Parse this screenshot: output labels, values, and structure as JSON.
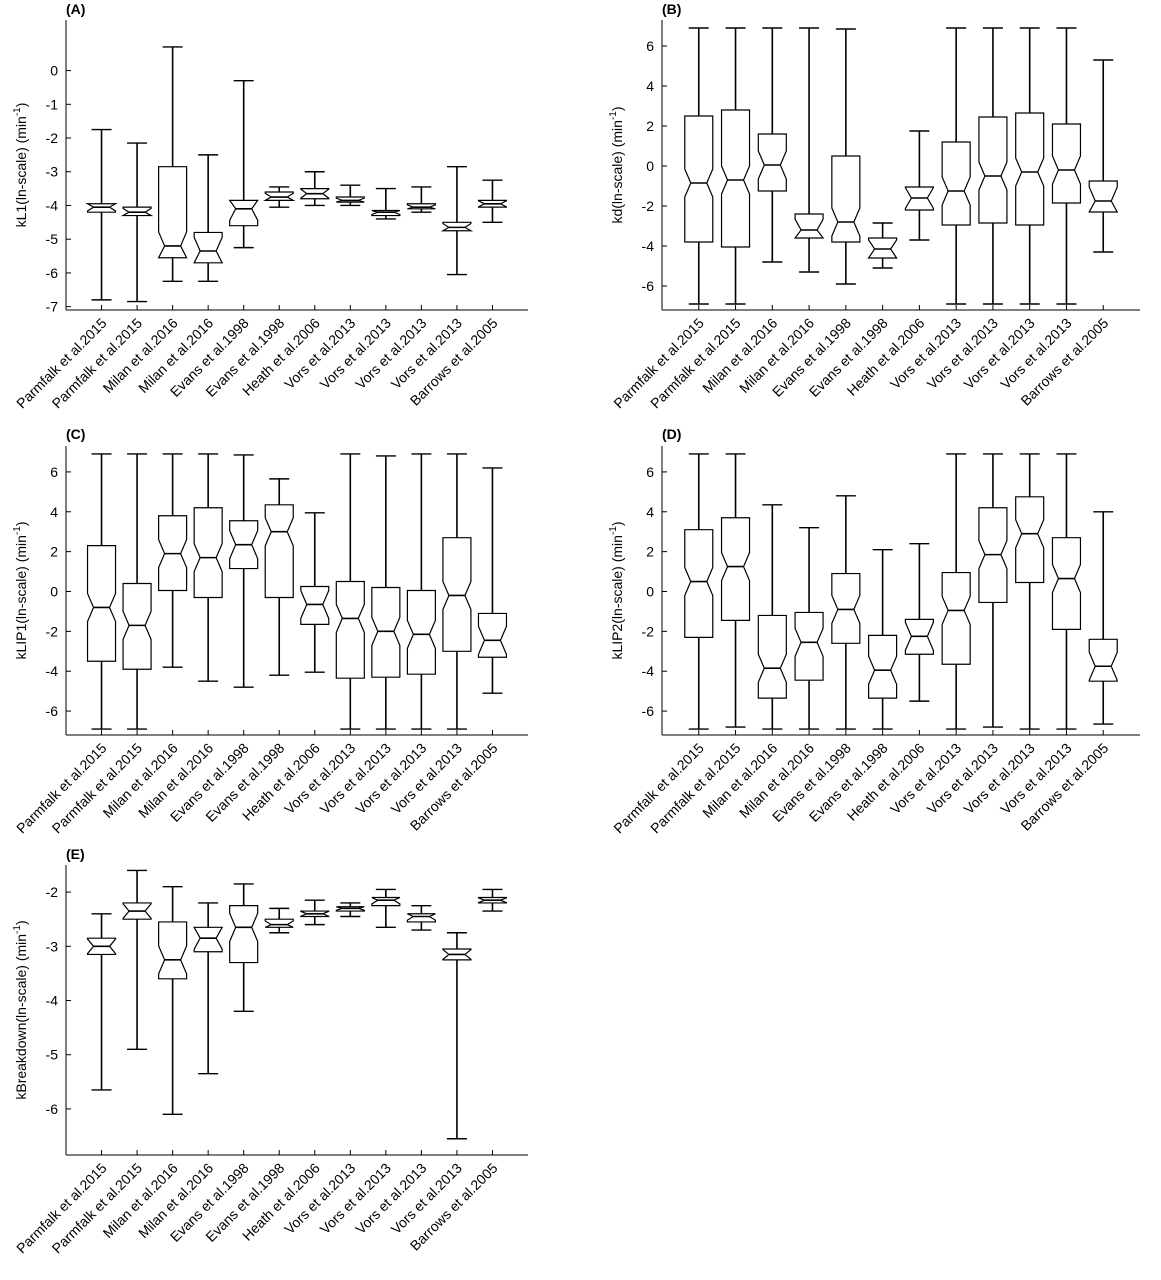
{
  "chart_data": [
    {
      "type": "boxplot",
      "panel_label": "(A)",
      "ylabel": "kL1(ln-scale) (min",
      "ylabel_sup": "-1",
      "ylabel_tail": ")",
      "ylim": [
        -7.1,
        1.5
      ],
      "yticks": [
        -7,
        -6,
        -5,
        -4,
        -3,
        -2,
        -1,
        0
      ],
      "notched": true,
      "categories": [
        "Parmfalk et al.2015",
        "Parmfalk et al.2015",
        "Milan et al.2016",
        "Milan et al.2016",
        "Evans et al.1998",
        "Evans et al.1998",
        "Heath et al.2006",
        "Vors et al.2013",
        "Vors et al.2013",
        "Vors et al.2013",
        "Vors et al.2013",
        "Barrows et al.2005"
      ],
      "boxes": [
        {
          "whisker_low": -6.8,
          "q1": -4.2,
          "median": -4.05,
          "q3": -3.95,
          "whisker_high": -1.75
        },
        {
          "whisker_low": -6.85,
          "q1": -4.3,
          "median": -4.2,
          "q3": -4.05,
          "whisker_high": -2.15
        },
        {
          "whisker_low": -6.25,
          "q1": -5.55,
          "median": -5.2,
          "q3": -2.85,
          "whisker_high": 0.7
        },
        {
          "whisker_low": -6.25,
          "q1": -5.7,
          "median": -5.35,
          "q3": -4.8,
          "whisker_high": -2.5
        },
        {
          "whisker_low": -5.25,
          "q1": -4.6,
          "median": -4.1,
          "q3": -3.85,
          "whisker_high": -0.3
        },
        {
          "whisker_low": -4.05,
          "q1": -3.85,
          "median": -3.75,
          "q3": -3.6,
          "whisker_high": -3.45
        },
        {
          "whisker_low": -4.0,
          "q1": -3.8,
          "median": -3.65,
          "q3": -3.5,
          "whisker_high": -3.0
        },
        {
          "whisker_low": -4.0,
          "q1": -3.9,
          "median": -3.85,
          "q3": -3.75,
          "whisker_high": -3.4
        },
        {
          "whisker_low": -4.4,
          "q1": -4.3,
          "median": -4.2,
          "q3": -4.15,
          "whisker_high": -3.5
        },
        {
          "whisker_low": -4.2,
          "q1": -4.1,
          "median": -4.05,
          "q3": -3.95,
          "whisker_high": -3.45
        },
        {
          "whisker_low": -6.05,
          "q1": -4.75,
          "median": -4.65,
          "q3": -4.5,
          "whisker_high": -2.85
        },
        {
          "whisker_low": -4.5,
          "q1": -4.05,
          "median": -3.95,
          "q3": -3.85,
          "whisker_high": -3.25
        }
      ]
    },
    {
      "type": "boxplot",
      "panel_label": "(B)",
      "ylabel": "kd(ln-scale) (min",
      "ylabel_sup": "-1",
      "ylabel_tail": ")",
      "ylim": [
        -7.2,
        7.3
      ],
      "yticks": [
        -6,
        -4,
        -2,
        0,
        2,
        4,
        6
      ],
      "notched": true,
      "categories": [
        "Parmfalk et al.2015",
        "Parmfalk et al.2015",
        "Milan et al.2016",
        "Milan et al.2016",
        "Evans et al.1998",
        "Evans et al.1998",
        "Heath et al.2006",
        "Vors et al.2013",
        "Vors et al.2013",
        "Vors et al.2013",
        "Vors et al.2013",
        "Barrows et al.2005"
      ],
      "boxes": [
        {
          "whisker_low": -6.9,
          "q1": -3.8,
          "median": -0.85,
          "q3": 2.5,
          "whisker_high": 6.9
        },
        {
          "whisker_low": -6.9,
          "q1": -4.05,
          "median": -0.7,
          "q3": 2.8,
          "whisker_high": 6.9
        },
        {
          "whisker_low": -4.8,
          "q1": -1.25,
          "median": 0.05,
          "q3": 1.6,
          "whisker_high": 6.9
        },
        {
          "whisker_low": -5.3,
          "q1": -3.6,
          "median": -3.2,
          "q3": -2.4,
          "whisker_high": 6.9
        },
        {
          "whisker_low": -5.9,
          "q1": -3.8,
          "median": -2.8,
          "q3": 0.5,
          "whisker_high": 6.85
        },
        {
          "whisker_low": -5.1,
          "q1": -4.6,
          "median": -4.15,
          "q3": -3.6,
          "whisker_high": -2.85
        },
        {
          "whisker_low": -3.7,
          "q1": -2.2,
          "median": -1.6,
          "q3": -1.05,
          "whisker_high": 1.75
        },
        {
          "whisker_low": -6.9,
          "q1": -2.95,
          "median": -1.25,
          "q3": 1.2,
          "whisker_high": 6.9
        },
        {
          "whisker_low": -6.9,
          "q1": -2.85,
          "median": -0.5,
          "q3": 2.45,
          "whisker_high": 6.9
        },
        {
          "whisker_low": -6.9,
          "q1": -2.95,
          "median": -0.3,
          "q3": 2.65,
          "whisker_high": 6.9
        },
        {
          "whisker_low": -6.9,
          "q1": -1.85,
          "median": -0.2,
          "q3": 2.1,
          "whisker_high": 6.9
        },
        {
          "whisker_low": -4.3,
          "q1": -2.3,
          "median": -1.75,
          "q3": -0.75,
          "whisker_high": 5.3
        }
      ]
    },
    {
      "type": "boxplot",
      "panel_label": "(C)",
      "ylabel": "kLIP1(ln-scale) (min",
      "ylabel_sup": "-1",
      "ylabel_tail": ")",
      "ylim": [
        -7.2,
        7.3
      ],
      "yticks": [
        -6,
        -4,
        -2,
        0,
        2,
        4,
        6
      ],
      "notched": true,
      "categories": [
        "Parmfalk et al.2015",
        "Parmfalk et al.2015",
        "Milan et al.2016",
        "Milan et al.2016",
        "Evans et al.1998",
        "Evans et al.1998",
        "Heath et al.2006",
        "Vors et al.2013",
        "Vors et al.2013",
        "Vors et al.2013",
        "Vors et al.2013",
        "Barrows et al.2005"
      ],
      "boxes": [
        {
          "whisker_low": -6.9,
          "q1": -3.5,
          "median": -0.8,
          "q3": 2.3,
          "whisker_high": 6.9
        },
        {
          "whisker_low": -6.9,
          "q1": -3.9,
          "median": -1.7,
          "q3": 0.4,
          "whisker_high": 6.9
        },
        {
          "whisker_low": -3.8,
          "q1": 0.05,
          "median": 1.9,
          "q3": 3.8,
          "whisker_high": 6.9
        },
        {
          "whisker_low": -4.5,
          "q1": -0.3,
          "median": 1.7,
          "q3": 4.2,
          "whisker_high": 6.9
        },
        {
          "whisker_low": -4.8,
          "q1": 1.15,
          "median": 2.35,
          "q3": 3.55,
          "whisker_high": 6.85
        },
        {
          "whisker_low": -4.2,
          "q1": -0.3,
          "median": 3.0,
          "q3": 4.35,
          "whisker_high": 5.65
        },
        {
          "whisker_low": -4.05,
          "q1": -1.65,
          "median": -0.65,
          "q3": 0.25,
          "whisker_high": 3.95
        },
        {
          "whisker_low": -6.9,
          "q1": -4.35,
          "median": -1.35,
          "q3": 0.5,
          "whisker_high": 6.9
        },
        {
          "whisker_low": -6.9,
          "q1": -4.3,
          "median": -2.0,
          "q3": 0.2,
          "whisker_high": 6.8
        },
        {
          "whisker_low": -6.9,
          "q1": -4.15,
          "median": -2.15,
          "q3": 0.05,
          "whisker_high": 6.9
        },
        {
          "whisker_low": -6.9,
          "q1": -3.0,
          "median": -0.2,
          "q3": 2.7,
          "whisker_high": 6.9
        },
        {
          "whisker_low": -5.1,
          "q1": -3.3,
          "median": -2.45,
          "q3": -1.1,
          "whisker_high": 6.2
        }
      ]
    },
    {
      "type": "boxplot",
      "panel_label": "(D)",
      "ylabel": "kLIP2(ln-scale) (min",
      "ylabel_sup": "-1",
      "ylabel_tail": ")",
      "ylim": [
        -7.2,
        7.3
      ],
      "yticks": [
        -6,
        -4,
        -2,
        0,
        2,
        4,
        6
      ],
      "notched": true,
      "categories": [
        "Parmfalk et al.2015",
        "Parmfalk et al.2015",
        "Milan et al.2016",
        "Milan et al.2016",
        "Evans et al.1998",
        "Evans et al.1998",
        "Heath et al.2006",
        "Vors et al.2013",
        "Vors et al.2013",
        "Vors et al.2013",
        "Vors et al.2013",
        "Barrows et al.2005"
      ],
      "boxes": [
        {
          "whisker_low": -6.9,
          "q1": -2.3,
          "median": 0.5,
          "q3": 3.1,
          "whisker_high": 6.9
        },
        {
          "whisker_low": -6.8,
          "q1": -1.45,
          "median": 1.25,
          "q3": 3.7,
          "whisker_high": 6.9
        },
        {
          "whisker_low": -6.9,
          "q1": -5.35,
          "median": -3.85,
          "q3": -1.2,
          "whisker_high": 4.35
        },
        {
          "whisker_low": -6.9,
          "q1": -4.45,
          "median": -2.55,
          "q3": -1.05,
          "whisker_high": 3.2
        },
        {
          "whisker_low": -6.9,
          "q1": -2.6,
          "median": -0.9,
          "q3": 0.9,
          "whisker_high": 4.8
        },
        {
          "whisker_low": -6.9,
          "q1": -5.35,
          "median": -3.95,
          "q3": -2.2,
          "whisker_high": 2.1
        },
        {
          "whisker_low": -5.5,
          "q1": -3.15,
          "median": -2.25,
          "q3": -1.4,
          "whisker_high": 2.4
        },
        {
          "whisker_low": -6.9,
          "q1": -3.65,
          "median": -0.95,
          "q3": 0.95,
          "whisker_high": 6.9
        },
        {
          "whisker_low": -6.8,
          "q1": -0.55,
          "median": 1.85,
          "q3": 4.2,
          "whisker_high": 6.9
        },
        {
          "whisker_low": -6.9,
          "q1": 0.45,
          "median": 2.9,
          "q3": 4.75,
          "whisker_high": 6.9
        },
        {
          "whisker_low": -6.9,
          "q1": -1.9,
          "median": 0.65,
          "q3": 2.7,
          "whisker_high": 6.9
        },
        {
          "whisker_low": -6.65,
          "q1": -4.5,
          "median": -3.75,
          "q3": -2.4,
          "whisker_high": 4.0
        }
      ]
    },
    {
      "type": "boxplot",
      "panel_label": "(E)",
      "ylabel": "kBreakdown(ln-scale) (min",
      "ylabel_sup": "-1",
      "ylabel_tail": ")",
      "ylim": [
        -6.85,
        -1.5
      ],
      "yticks": [
        -6,
        -5,
        -4,
        -3,
        -2
      ],
      "notched": true,
      "categories": [
        "Parmfalk et al.2015",
        "Parmfalk et al.2015",
        "Milan et al.2016",
        "Milan et al.2016",
        "Evans et al.1998",
        "Evans et al.1998",
        "Heath et al.2006",
        "Vors et al.2013",
        "Vors et al.2013",
        "Vors et al.2013",
        "Vors et al.2013",
        "Barrows et al.2005"
      ],
      "boxes": [
        {
          "whisker_low": -5.65,
          "q1": -3.15,
          "median": -3.0,
          "q3": -2.85,
          "whisker_high": -2.4
        },
        {
          "whisker_low": -4.9,
          "q1": -2.5,
          "median": -2.35,
          "q3": -2.2,
          "whisker_high": -1.6
        },
        {
          "whisker_low": -6.1,
          "q1": -3.6,
          "median": -3.25,
          "q3": -2.55,
          "whisker_high": -1.9
        },
        {
          "whisker_low": -5.35,
          "q1": -3.1,
          "median": -2.85,
          "q3": -2.65,
          "whisker_high": -2.2
        },
        {
          "whisker_low": -4.2,
          "q1": -3.3,
          "median": -2.65,
          "q3": -2.25,
          "whisker_high": -1.85
        },
        {
          "whisker_low": -2.75,
          "q1": -2.65,
          "median": -2.6,
          "q3": -2.5,
          "whisker_high": -2.3
        },
        {
          "whisker_low": -2.6,
          "q1": -2.45,
          "median": -2.4,
          "q3": -2.35,
          "whisker_high": -2.15
        },
        {
          "whisker_low": -2.45,
          "q1": -2.35,
          "median": -2.3,
          "q3": -2.27,
          "whisker_high": -2.2
        },
        {
          "whisker_low": -2.65,
          "q1": -2.25,
          "median": -2.15,
          "q3": -2.1,
          "whisker_high": -1.95
        },
        {
          "whisker_low": -2.7,
          "q1": -2.55,
          "median": -2.45,
          "q3": -2.4,
          "whisker_high": -2.25
        },
        {
          "whisker_low": -6.55,
          "q1": -3.25,
          "median": -3.15,
          "q3": -3.05,
          "whisker_high": -2.75
        },
        {
          "whisker_low": -2.35,
          "q1": -2.2,
          "median": -2.15,
          "q3": -2.1,
          "whisker_high": -1.95
        }
      ]
    }
  ]
}
